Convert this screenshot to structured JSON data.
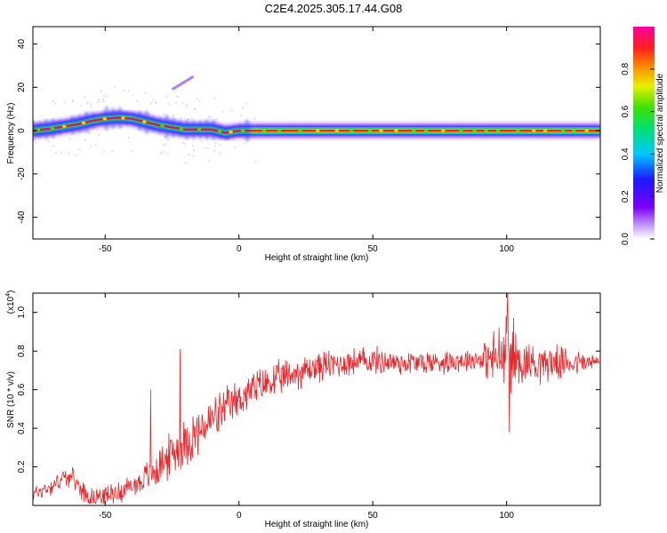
{
  "title": "C2E4.2025.305.17.44.G08",
  "colors": {
    "signal": "#e8262a",
    "spectrum_ridge_core": "#e8262a",
    "spectrum_ridge_edge": "#1a3cff",
    "frame": "#000000",
    "background": "#ffffff"
  },
  "chart_data": [
    {
      "type": "heatmap",
      "title": "C2E4.2025.305.17.44.G08",
      "xlabel": "Height of straight line (km)",
      "ylabel": "Frequency (Hz)",
      "xlim": [
        -77,
        135
      ],
      "ylim": [
        -50,
        48
      ],
      "xticks": [
        -50,
        0,
        50,
        100
      ],
      "yticks": [
        -40,
        -20,
        0,
        20,
        40
      ],
      "colorbar": {
        "label": "Normalized spectral amplitude",
        "range": [
          0.0,
          1.0
        ],
        "ticks": [
          0.0,
          0.2,
          0.4,
          0.6,
          0.8
        ],
        "tick_labels": [
          "0.0",
          "0.2",
          "0.4",
          "0.6",
          "0.8"
        ],
        "colormap": "rainbow (white-purple-blue-cyan-green-yellow-red-magenta)"
      },
      "ridge": {
        "x": [
          -77,
          -70,
          -65,
          -60,
          -55,
          -50,
          -45,
          -40,
          -35,
          -30,
          -25,
          -20,
          -15,
          -10,
          -5,
          0,
          10,
          30,
          50,
          70,
          90,
          110,
          135
        ],
        "frequency": [
          0,
          1,
          2,
          3,
          4.5,
          5.5,
          6,
          5.5,
          4,
          2.5,
          1.5,
          0.5,
          0.5,
          0.5,
          -1,
          0,
          0,
          0,
          0,
          0,
          0,
          0,
          0
        ]
      },
      "artifacts": {
        "drift_line": {
          "x": [
            -25,
            -17
          ],
          "frequency": [
            19,
            25
          ]
        }
      },
      "grid": false,
      "legend": "colorbar-right"
    },
    {
      "type": "line",
      "xlabel": "Height of straight line (km)",
      "ylabel": "SNR (10 * v/v)",
      "y_multiplier_label": "(x10",
      "y_multiplier_exp": "4",
      "y_multiplier_close": ")",
      "xlim": [
        -77,
        135
      ],
      "ylim": [
        0.0,
        1.1
      ],
      "xticks": [
        -50,
        0,
        50,
        100
      ],
      "yticks": [
        0.2,
        0.4,
        0.6,
        0.8,
        1.0
      ],
      "ytick_labels": [
        "0.2",
        "0.4",
        "0.6",
        "0.8",
        "1.0"
      ],
      "series": [
        {
          "color": "#e8262a",
          "trend_x": [
            -77,
            -70,
            -65,
            -62,
            -58,
            -55,
            -50,
            -45,
            -40,
            -35,
            -30,
            -25,
            -20,
            -15,
            -10,
            -5,
            0,
            5,
            10,
            20,
            30,
            40,
            50,
            60,
            70,
            80,
            90,
            95,
            100,
            105,
            110,
            120,
            135
          ],
          "trend_y": [
            0.06,
            0.1,
            0.15,
            0.14,
            0.07,
            0.04,
            0.05,
            0.07,
            0.1,
            0.14,
            0.2,
            0.27,
            0.33,
            0.38,
            0.44,
            0.5,
            0.55,
            0.6,
            0.63,
            0.68,
            0.72,
            0.74,
            0.75,
            0.74,
            0.74,
            0.75,
            0.76,
            0.76,
            0.78,
            0.75,
            0.74,
            0.74,
            0.74
          ],
          "noise_amplitude_x": [
            -77,
            -40,
            -30,
            -20,
            0,
            40,
            90,
            99,
            101,
            104,
            135
          ],
          "noise_amplitude_y": [
            0.05,
            0.07,
            0.12,
            0.16,
            0.12,
            0.09,
            0.07,
            0.25,
            0.35,
            0.15,
            0.05
          ],
          "spikes": [
            {
              "x": -33,
              "y": 0.6
            },
            {
              "x": -22,
              "y": 0.81
            },
            {
              "x": 100.5,
              "y": 1.1
            },
            {
              "x": 101,
              "y": 0.38
            }
          ]
        }
      ],
      "grid": false,
      "legend": "none"
    }
  ]
}
